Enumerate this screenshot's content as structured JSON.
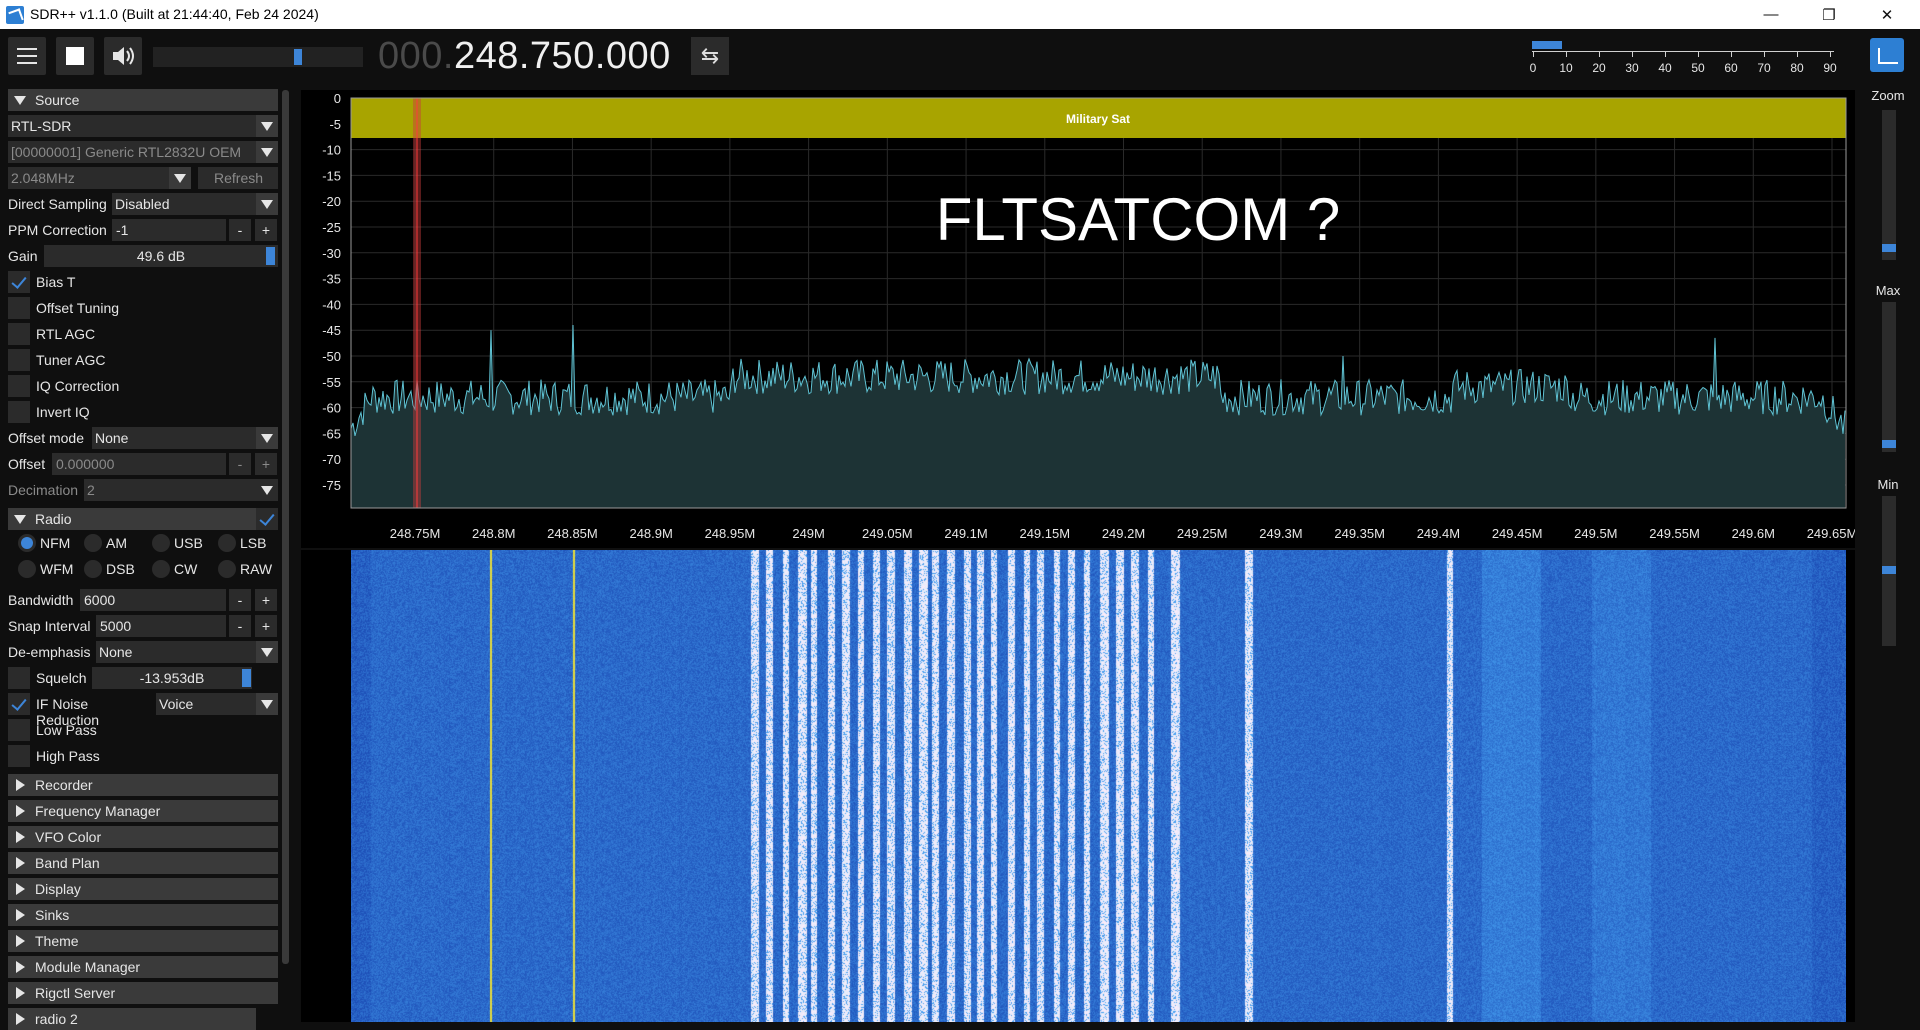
{
  "window": {
    "title": "SDR++ v1.1.0 (Built at 21:44:40, Feb 24 2024)"
  },
  "toolbar": {
    "frequency_dim": "000.",
    "frequency_bright": "248.750.000",
    "volume_level": 0.7,
    "snr_ticks": [
      "0",
      "10",
      "20",
      "30",
      "40",
      "50",
      "60",
      "70",
      "80",
      "90"
    ],
    "snr_level": 9
  },
  "source": {
    "header": "Source",
    "type": "RTL-SDR",
    "device": "[00000001] Generic RTL2832U OEM",
    "samplerate": "2.048MHz",
    "refresh_label": "Refresh",
    "direct_sampling_label": "Direct Sampling",
    "direct_sampling_value": "Disabled",
    "ppm_label": "PPM Correction",
    "ppm_value": "-1",
    "gain_label": "Gain",
    "gain_value": "49.6 dB",
    "bias_t": "Bias T",
    "offset_tuning": "Offset Tuning",
    "rtl_agc": "RTL AGC",
    "tuner_agc": "Tuner AGC",
    "iq_correction": "IQ Correction",
    "invert_iq": "Invert IQ",
    "offset_mode_label": "Offset mode",
    "offset_mode_value": "None",
    "offset_label": "Offset",
    "offset_value": "0.000000",
    "decimation_label": "Decimation",
    "decimation_value": "2"
  },
  "radio": {
    "header": "Radio",
    "modes": [
      "NFM",
      "AM",
      "USB",
      "LSB",
      "WFM",
      "DSB",
      "CW",
      "RAW"
    ],
    "selected_mode": "NFM",
    "bandwidth_label": "Bandwidth",
    "bandwidth_value": "6000",
    "snap_label": "Snap Interval",
    "snap_value": "5000",
    "deemph_label": "De-emphasis",
    "deemph_value": "None",
    "squelch_label": "Squelch",
    "squelch_value": "-13.953dB",
    "ifnr_label": "IF Noise Reduction",
    "ifnr_value": "Voice",
    "lowpass_label": "Low Pass",
    "highpass_label": "High Pass"
  },
  "modules": [
    "Recorder",
    "Frequency Manager",
    "VFO Color",
    "Band Plan",
    "Display",
    "Sinks",
    "Theme",
    "Module Manager",
    "Rigctl Server",
    "radio 2"
  ],
  "fft": {
    "y_ticks": [
      "0",
      "-5",
      "-10",
      "-15",
      "-20",
      "-25",
      "-30",
      "-35",
      "-40",
      "-45",
      "-50",
      "-55",
      "-60",
      "-65",
      "-70",
      "-75"
    ],
    "x_ticks": [
      "248.75M",
      "248.8M",
      "248.85M",
      "248.9M",
      "248.95M",
      "249M",
      "249.05M",
      "249.1M",
      "249.15M",
      "249.2M",
      "249.25M",
      "249.3M",
      "249.35M",
      "249.4M",
      "249.45M",
      "249.5M",
      "249.55M",
      "249.6M",
      "249.65M"
    ],
    "band_label": "Military Sat",
    "annotation": "FLTSATCOM ?",
    "band_color": "#a8a400",
    "trace_color": "#5fc3d4"
  },
  "right": {
    "zoom_label": "Zoom",
    "max_label": "Max",
    "min_label": "Min"
  }
}
